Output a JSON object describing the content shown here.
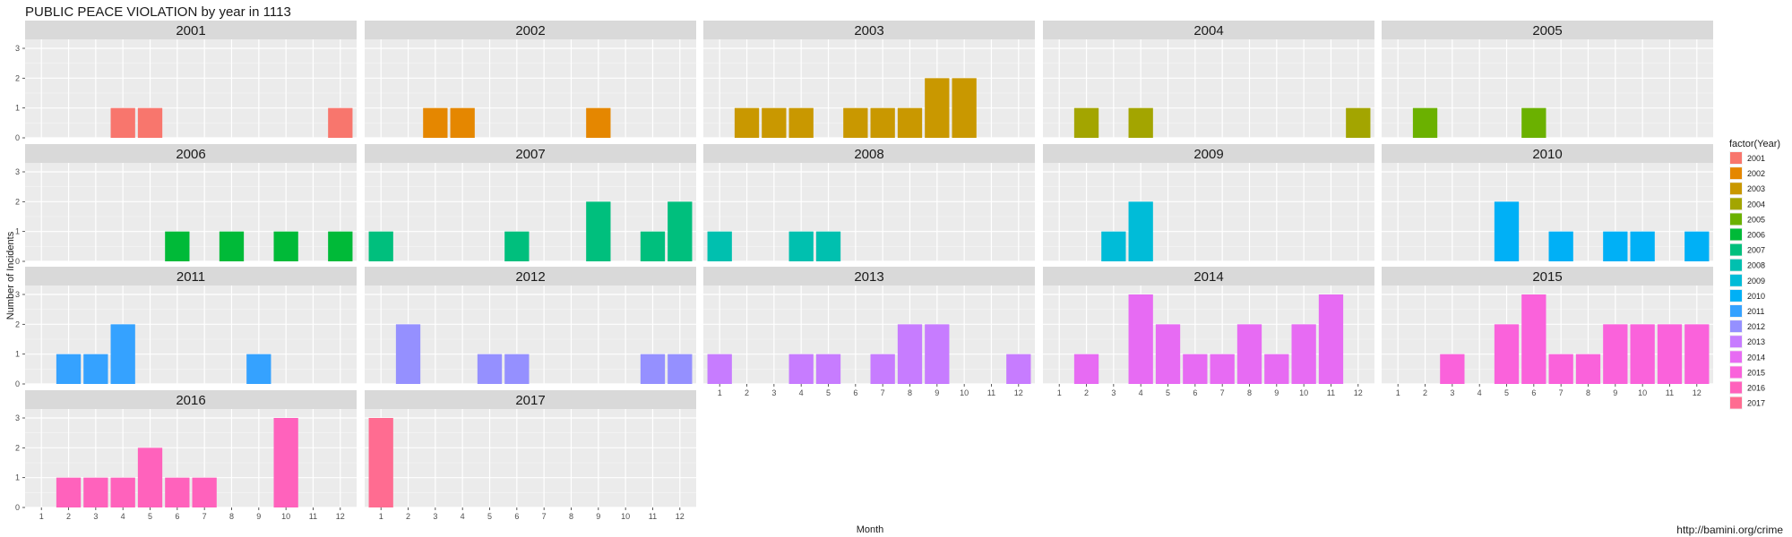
{
  "chart_data": {
    "type": "bar",
    "title": "PUBLIC PEACE VIOLATION by year in 1113",
    "xlabel": "Month",
    "ylabel": "Number of Incidents",
    "x_ticks": [
      1,
      2,
      3,
      4,
      5,
      6,
      7,
      8,
      9,
      10,
      11,
      12
    ],
    "y_ticks": [
      0,
      1,
      2,
      3
    ],
    "ylim": [
      0,
      3.3
    ],
    "grid": true,
    "legend": {
      "title": "factor(Year)",
      "position": "right"
    },
    "source": "http://bamini.org/crime",
    "panels": [
      {
        "year": "2001",
        "color": "#F8766D",
        "bars": [
          {
            "month": 4,
            "value": 1
          },
          {
            "month": 5,
            "value": 1
          },
          {
            "month": 12,
            "value": 1
          }
        ]
      },
      {
        "year": "2002",
        "color": "#E58700",
        "bars": [
          {
            "month": 3,
            "value": 1
          },
          {
            "month": 4,
            "value": 1
          },
          {
            "month": 9,
            "value": 1
          }
        ]
      },
      {
        "year": "2003",
        "color": "#C99800",
        "bars": [
          {
            "month": 2,
            "value": 1
          },
          {
            "month": 3,
            "value": 1
          },
          {
            "month": 4,
            "value": 1
          },
          {
            "month": 6,
            "value": 1
          },
          {
            "month": 7,
            "value": 1
          },
          {
            "month": 8,
            "value": 1
          },
          {
            "month": 9,
            "value": 2
          },
          {
            "month": 10,
            "value": 2
          }
        ]
      },
      {
        "year": "2004",
        "color": "#A3A500",
        "bars": [
          {
            "month": 2,
            "value": 1
          },
          {
            "month": 4,
            "value": 1
          },
          {
            "month": 12,
            "value": 1
          }
        ]
      },
      {
        "year": "2005",
        "color": "#6BB100",
        "bars": [
          {
            "month": 2,
            "value": 1
          },
          {
            "month": 6,
            "value": 1
          }
        ]
      },
      {
        "year": "2006",
        "color": "#00BA38",
        "bars": [
          {
            "month": 6,
            "value": 1
          },
          {
            "month": 8,
            "value": 1
          },
          {
            "month": 10,
            "value": 1
          },
          {
            "month": 12,
            "value": 1
          }
        ]
      },
      {
        "year": "2007",
        "color": "#00BF7D",
        "bars": [
          {
            "month": 1,
            "value": 1
          },
          {
            "month": 6,
            "value": 1
          },
          {
            "month": 9,
            "value": 2
          },
          {
            "month": 11,
            "value": 1
          },
          {
            "month": 12,
            "value": 2
          }
        ]
      },
      {
        "year": "2008",
        "color": "#00C0AF",
        "bars": [
          {
            "month": 1,
            "value": 1
          },
          {
            "month": 4,
            "value": 1
          },
          {
            "month": 5,
            "value": 1
          }
        ]
      },
      {
        "year": "2009",
        "color": "#00BCD8",
        "bars": [
          {
            "month": 3,
            "value": 1
          },
          {
            "month": 4,
            "value": 2
          }
        ]
      },
      {
        "year": "2010",
        "color": "#00B0F6",
        "bars": [
          {
            "month": 5,
            "value": 2
          },
          {
            "month": 7,
            "value": 1
          },
          {
            "month": 9,
            "value": 1
          },
          {
            "month": 10,
            "value": 1
          },
          {
            "month": 12,
            "value": 1
          }
        ]
      },
      {
        "year": "2011",
        "color": "#35A2FF",
        "bars": [
          {
            "month": 2,
            "value": 1
          },
          {
            "month": 3,
            "value": 1
          },
          {
            "month": 4,
            "value": 2
          },
          {
            "month": 9,
            "value": 1
          }
        ]
      },
      {
        "year": "2012",
        "color": "#9590FF",
        "bars": [
          {
            "month": 2,
            "value": 2
          },
          {
            "month": 5,
            "value": 1
          },
          {
            "month": 6,
            "value": 1
          },
          {
            "month": 11,
            "value": 1
          },
          {
            "month": 12,
            "value": 1
          }
        ]
      },
      {
        "year": "2013",
        "color": "#C77CFF",
        "bars": [
          {
            "month": 1,
            "value": 1
          },
          {
            "month": 4,
            "value": 1
          },
          {
            "month": 5,
            "value": 1
          },
          {
            "month": 7,
            "value": 1
          },
          {
            "month": 8,
            "value": 2
          },
          {
            "month": 9,
            "value": 2
          },
          {
            "month": 12,
            "value": 1
          }
        ]
      },
      {
        "year": "2014",
        "color": "#E76BF3",
        "bars": [
          {
            "month": 2,
            "value": 1
          },
          {
            "month": 4,
            "value": 3
          },
          {
            "month": 5,
            "value": 2
          },
          {
            "month": 6,
            "value": 1
          },
          {
            "month": 7,
            "value": 1
          },
          {
            "month": 8,
            "value": 2
          },
          {
            "month": 9,
            "value": 1
          },
          {
            "month": 10,
            "value": 2
          },
          {
            "month": 11,
            "value": 3
          }
        ]
      },
      {
        "year": "2015",
        "color": "#FA62DB",
        "bars": [
          {
            "month": 3,
            "value": 1
          },
          {
            "month": 5,
            "value": 2
          },
          {
            "month": 6,
            "value": 3
          },
          {
            "month": 7,
            "value": 1
          },
          {
            "month": 8,
            "value": 1
          },
          {
            "month": 9,
            "value": 2
          },
          {
            "month": 10,
            "value": 2
          },
          {
            "month": 11,
            "value": 2
          },
          {
            "month": 12,
            "value": 2
          }
        ]
      },
      {
        "year": "2016",
        "color": "#FF62BC",
        "bars": [
          {
            "month": 2,
            "value": 1
          },
          {
            "month": 3,
            "value": 1
          },
          {
            "month": 4,
            "value": 1
          },
          {
            "month": 5,
            "value": 2
          },
          {
            "month": 6,
            "value": 1
          },
          {
            "month": 7,
            "value": 1
          },
          {
            "month": 10,
            "value": 3
          }
        ]
      },
      {
        "year": "2017",
        "color": "#FF6C91",
        "bars": [
          {
            "month": 1,
            "value": 3
          }
        ]
      }
    ]
  }
}
